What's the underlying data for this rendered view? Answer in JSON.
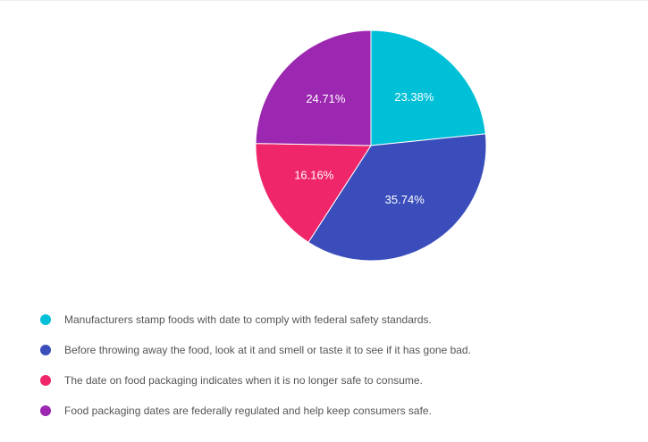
{
  "chart_data": {
    "type": "pie",
    "slices": [
      {
        "label": "Manufacturers stamp foods with date to comply with federal safety standards.",
        "value": 23.38,
        "value_label": "23.38%",
        "color": "#00c0d8"
      },
      {
        "label": "Before throwing away the food, look at it and smell or taste it to see if it has gone bad.",
        "value": 35.74,
        "value_label": "35.74%",
        "color": "#3a4dbb"
      },
      {
        "label": "The date on food packaging indicates when it is no longer safe to consume.",
        "value": 16.16,
        "value_label": "16.16%",
        "color": "#f0266a"
      },
      {
        "label": "Food packaging dates are federally regulated and help keep consumers safe.",
        "value": 24.71,
        "value_label": "24.71%",
        "color": "#9c27b0"
      }
    ],
    "start_angle": "12 o'clock",
    "direction": "clockwise",
    "legend_position": "bottom-left"
  }
}
